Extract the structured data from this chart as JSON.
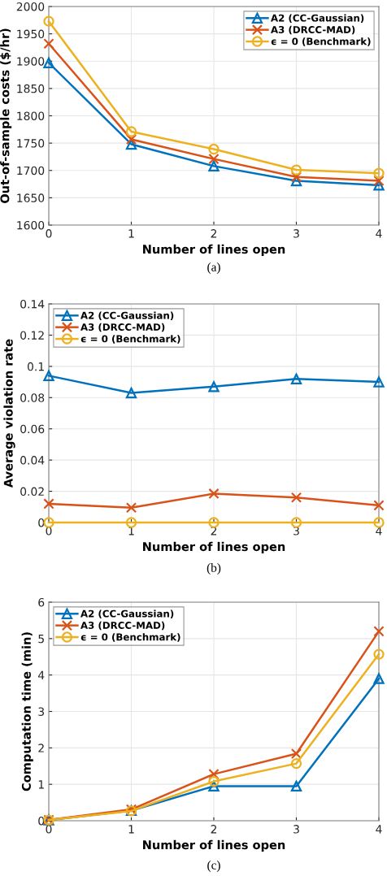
{
  "chart_data": [
    {
      "type": "line",
      "xlabel": "Number of lines open",
      "ylabel": "Out-of-sample costs ($/hr)",
      "annotations": [
        "(a)"
      ],
      "x": [
        0,
        1,
        2,
        3,
        4
      ],
      "xlim": [
        0,
        4
      ],
      "xticks": [
        0,
        1,
        2,
        3,
        4
      ],
      "ylim": [
        1600,
        2000
      ],
      "yticks": [
        1600,
        1650,
        1700,
        1750,
        1800,
        1850,
        1900,
        1950,
        2000
      ],
      "grid": true,
      "legend": "top right",
      "line_style": "solid",
      "series": [
        {
          "name": "A2 (CC-Gaussian)",
          "color": "#0072bd",
          "marker": "triangle",
          "values": [
            1897,
            1748,
            1708,
            1681,
            1673
          ]
        },
        {
          "name": "A3 (DRCC-MAD)",
          "color": "#d95319",
          "marker": "cross",
          "values": [
            1932,
            1757,
            1721,
            1688,
            1681
          ]
        },
        {
          "name": "ϵ = 0 (Benchmark)",
          "color": "#edb120",
          "marker": "circle",
          "values": [
            1973,
            1771,
            1739,
            1701,
            1695
          ]
        }
      ]
    },
    {
      "type": "line",
      "xlabel": "Number of lines open",
      "ylabel": "Average violation rate",
      "annotations": [
        "(b)"
      ],
      "x": [
        0,
        1,
        2,
        3,
        4
      ],
      "xlim": [
        0,
        4
      ],
      "xticks": [
        0,
        1,
        2,
        3,
        4
      ],
      "ylim": [
        0,
        0.14
      ],
      "yticks": [
        0,
        0.02,
        0.04,
        0.06,
        0.08,
        0.1,
        0.12,
        0.14
      ],
      "grid": true,
      "legend": "top left",
      "line_style": "solid",
      "series": [
        {
          "name": "A2 (CC-Gaussian)",
          "color": "#0072bd",
          "marker": "triangle",
          "values": [
            0.094,
            0.083,
            0.087,
            0.092,
            0.09
          ]
        },
        {
          "name": "A3 (DRCC-MAD)",
          "color": "#d95319",
          "marker": "cross",
          "values": [
            0.012,
            0.0095,
            0.0185,
            0.016,
            0.011
          ]
        },
        {
          "name": "ϵ = 0 (Benchmark)",
          "color": "#edb120",
          "marker": "circle",
          "values": [
            0,
            0,
            0,
            0,
            0
          ]
        }
      ]
    },
    {
      "type": "line",
      "xlabel": "Number of lines open",
      "ylabel": "Computation time (min)",
      "annotations": [
        "(c)"
      ],
      "x": [
        0,
        1,
        2,
        3,
        4
      ],
      "xlim": [
        0,
        4
      ],
      "xticks": [
        0,
        1,
        2,
        3,
        4
      ],
      "ylim": [
        0,
        6
      ],
      "yticks": [
        0,
        1,
        2,
        3,
        4,
        5,
        6
      ],
      "grid": true,
      "legend": "top left",
      "line_style": "solid",
      "series": [
        {
          "name": "A2 (CC-Gaussian)",
          "color": "#0072bd",
          "marker": "triangle",
          "values": [
            0.02,
            0.28,
            0.95,
            0.95,
            3.9
          ]
        },
        {
          "name": "A3 (DRCC-MAD)",
          "color": "#d95319",
          "marker": "cross",
          "values": [
            0.02,
            0.31,
            1.28,
            1.84,
            5.2
          ]
        },
        {
          "name": "ϵ = 0 (Benchmark)",
          "color": "#edb120",
          "marker": "circle",
          "values": [
            0.02,
            0.27,
            1.08,
            1.57,
            4.57
          ]
        }
      ]
    }
  ]
}
